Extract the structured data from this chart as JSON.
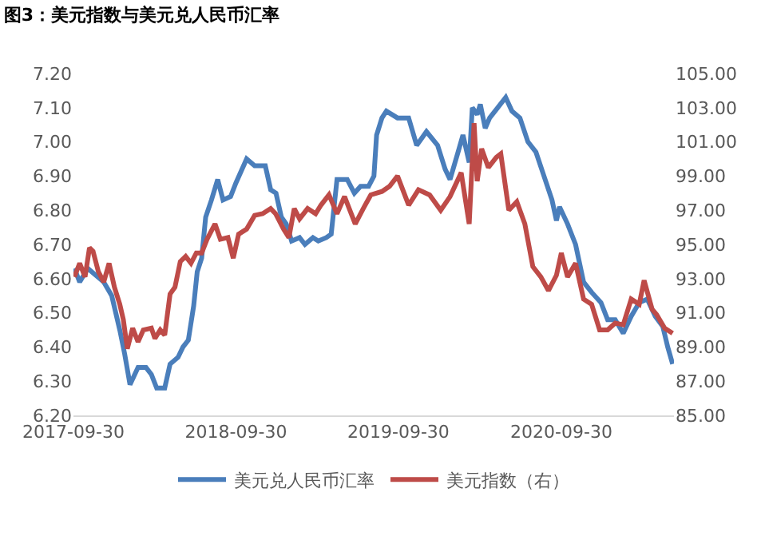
{
  "chart_data": {
    "type": "line",
    "title": "图3：美元指数与美元兑人民币汇率",
    "xlim": [
      "2017-09-30",
      "2021-06-10"
    ],
    "xticks": [
      "2017-09-30",
      "2018-09-30",
      "2019-09-30",
      "2020-09-30"
    ],
    "ylim": [
      6.2,
      7.2
    ],
    "yticks": [
      {
        "value": 6.2,
        "label": "6.20"
      },
      {
        "value": 6.3,
        "label": "6.30"
      },
      {
        "value": 6.4,
        "label": "6.40"
      },
      {
        "value": 6.5,
        "label": "6.50"
      },
      {
        "value": 6.6,
        "label": "6.60"
      },
      {
        "value": 6.7,
        "label": "6.70"
      },
      {
        "value": 6.8,
        "label": "6.80"
      },
      {
        "value": 6.9,
        "label": "6.90"
      },
      {
        "value": 7.0,
        "label": "7.00"
      },
      {
        "value": 7.1,
        "label": "7.10"
      },
      {
        "value": 7.2,
        "label": "7.20"
      }
    ],
    "y2lim": [
      85,
      105
    ],
    "y2ticks": [
      {
        "value": 85,
        "label": "85.00"
      },
      {
        "value": 87,
        "label": "87.00"
      },
      {
        "value": 89,
        "label": "89.00"
      },
      {
        "value": 91,
        "label": "91.00"
      },
      {
        "value": 93,
        "label": "93.00"
      },
      {
        "value": 95,
        "label": "95.00"
      },
      {
        "value": 97,
        "label": "97.00"
      },
      {
        "value": 99,
        "label": "99.00"
      },
      {
        "value": 101,
        "label": "101.00"
      },
      {
        "value": 103,
        "label": "103.00"
      },
      {
        "value": 105,
        "label": "105.00"
      }
    ],
    "grid": false,
    "legend": "bottom",
    "marker": "none",
    "line_style": "solid",
    "series": [
      {
        "name": "美元兑人民币汇率",
        "color": "#4a7ebb",
        "x": [
          "2017-10-02",
          "2017-10-14",
          "2017-11-01",
          "2017-11-19",
          "2017-12-07",
          "2017-12-25",
          "2018-01-12",
          "2018-01-23",
          "2018-02-04",
          "2018-02-22",
          "2018-03-12",
          "2018-03-24",
          "2018-04-05",
          "2018-04-23",
          "2018-05-05",
          "2018-05-23",
          "2018-06-03",
          "2018-06-15",
          "2018-06-27",
          "2018-07-05",
          "2018-07-15",
          "2018-07-24",
          "2018-08-06",
          "2018-08-20",
          "2018-09-01",
          "2018-09-18",
          "2018-09-30",
          "2018-10-24",
          "2018-11-11",
          "2018-12-05",
          "2018-12-17",
          "2018-12-29",
          "2019-01-10",
          "2019-01-21",
          "2019-02-02",
          "2019-02-20",
          "2019-03-04",
          "2019-03-22",
          "2019-04-03",
          "2019-04-21",
          "2019-05-02",
          "2019-05-15",
          "2019-06-07",
          "2019-06-23",
          "2019-07-07",
          "2019-07-25",
          "2019-08-06",
          "2019-08-12",
          "2019-08-24",
          "2019-09-03",
          "2019-09-28",
          "2019-10-23",
          "2019-11-10",
          "2019-12-02",
          "2019-12-27",
          "2020-01-13",
          "2020-01-24",
          "2020-02-11",
          "2020-02-22",
          "2020-03-07",
          "2020-03-14",
          "2020-03-25",
          "2020-04-01",
          "2020-04-12",
          "2020-04-22",
          "2020-05-10",
          "2020-05-28",
          "2020-06-11",
          "2020-06-29",
          "2020-07-17",
          "2020-08-04",
          "2020-08-22",
          "2020-09-09",
          "2020-09-19",
          "2020-09-26",
          "2020-10-14",
          "2020-11-01",
          "2020-11-19",
          "2020-12-07",
          "2020-12-28",
          "2021-01-12",
          "2021-01-29",
          "2021-02-16",
          "2021-03-06",
          "2021-03-24",
          "2021-04-11",
          "2021-04-29",
          "2021-05-16",
          "2021-05-27",
          "2021-06-07"
        ],
        "values": [
          6.63,
          6.59,
          6.63,
          6.61,
          6.59,
          6.55,
          6.45,
          6.38,
          6.29,
          6.34,
          6.34,
          6.32,
          6.28,
          6.28,
          6.35,
          6.37,
          6.4,
          6.42,
          6.52,
          6.62,
          6.66,
          6.78,
          6.83,
          6.89,
          6.83,
          6.84,
          6.88,
          6.95,
          6.93,
          6.93,
          6.86,
          6.85,
          6.78,
          6.76,
          6.71,
          6.72,
          6.7,
          6.72,
          6.71,
          6.72,
          6.73,
          6.89,
          6.89,
          6.85,
          6.87,
          6.87,
          6.9,
          7.02,
          7.07,
          7.09,
          7.07,
          7.07,
          6.99,
          7.03,
          6.99,
          6.92,
          6.89,
          6.97,
          7.02,
          6.94,
          7.1,
          7.08,
          7.11,
          7.04,
          7.07,
          7.1,
          7.13,
          7.09,
          7.07,
          7.0,
          6.97,
          6.9,
          6.83,
          6.77,
          6.81,
          6.76,
          6.7,
          6.59,
          6.56,
          6.53,
          6.48,
          6.48,
          6.44,
          6.49,
          6.53,
          6.54,
          6.49,
          6.46,
          6.4,
          6.35
        ]
      },
      {
        "name": "美元指数（右）",
        "color": "#be4b48",
        "axis": "y2",
        "x": [
          "2017-10-02",
          "2017-10-14",
          "2017-10-26",
          "2017-11-05",
          "2017-11-13",
          "2017-11-25",
          "2017-12-07",
          "2017-12-19",
          "2017-12-31",
          "2018-01-12",
          "2018-01-20",
          "2018-01-29",
          "2018-02-10",
          "2018-02-22",
          "2018-03-06",
          "2018-03-24",
          "2018-04-01",
          "2018-04-13",
          "2018-04-23",
          "2018-05-05",
          "2018-05-16",
          "2018-05-28",
          "2018-06-09",
          "2018-06-21",
          "2018-07-03",
          "2018-07-15",
          "2018-07-27",
          "2018-08-14",
          "2018-08-26",
          "2018-09-12",
          "2018-09-24",
          "2018-10-06",
          "2018-10-24",
          "2018-11-11",
          "2018-11-29",
          "2018-12-17",
          "2018-12-28",
          "2019-01-15",
          "2019-01-27",
          "2019-02-08",
          "2019-02-20",
          "2019-03-10",
          "2019-03-28",
          "2019-04-09",
          "2019-04-27",
          "2019-05-15",
          "2019-06-01",
          "2019-06-25",
          "2019-07-13",
          "2019-07-30",
          "2019-08-24",
          "2019-09-10",
          "2019-09-28",
          "2019-10-23",
          "2019-11-14",
          "2019-12-09",
          "2020-01-03",
          "2020-01-24",
          "2020-02-18",
          "2020-03-07",
          "2020-03-18",
          "2020-03-25",
          "2020-04-04",
          "2020-04-19",
          "2020-05-07",
          "2020-05-17",
          "2020-06-04",
          "2020-06-22",
          "2020-07-10",
          "2020-07-28",
          "2020-08-15",
          "2020-09-01",
          "2020-09-19",
          "2020-09-30",
          "2020-10-14",
          "2020-11-01",
          "2020-11-19",
          "2020-12-07",
          "2020-12-25",
          "2021-01-12",
          "2021-01-29",
          "2021-02-16",
          "2021-03-06",
          "2021-03-24",
          "2021-04-04",
          "2021-04-22",
          "2021-05-02",
          "2021-05-20",
          "2021-06-07"
        ],
        "values": [
          93.1,
          93.9,
          93.1,
          94.8,
          94.6,
          93.4,
          92.8,
          93.9,
          92.5,
          91.5,
          90.6,
          88.9,
          90.1,
          89.3,
          90.0,
          90.1,
          89.5,
          90.0,
          89.7,
          92.1,
          92.5,
          94.0,
          94.3,
          93.9,
          94.5,
          94.5,
          95.3,
          96.2,
          95.3,
          95.4,
          94.2,
          95.6,
          95.9,
          96.7,
          96.8,
          97.1,
          96.8,
          95.9,
          95.4,
          97.1,
          96.5,
          97.1,
          96.8,
          97.3,
          97.9,
          96.8,
          97.8,
          96.2,
          97.1,
          97.9,
          98.1,
          98.4,
          99.0,
          97.3,
          98.2,
          97.9,
          97.0,
          97.8,
          99.2,
          96.2,
          102.1,
          98.7,
          100.6,
          99.5,
          100.1,
          100.3,
          97.0,
          97.5,
          96.2,
          93.7,
          93.1,
          92.3,
          93.2,
          94.5,
          93.1,
          93.9,
          91.8,
          91.5,
          90.0,
          90.0,
          90.4,
          90.3,
          91.8,
          91.5,
          92.9,
          91.2,
          90.9,
          90.1,
          89.8
        ]
      }
    ]
  }
}
